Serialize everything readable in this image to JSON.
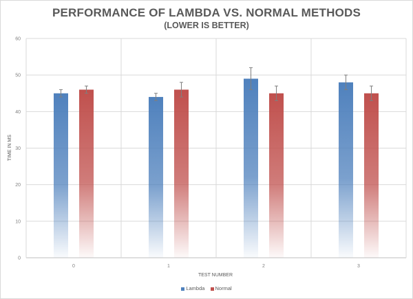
{
  "chart_data": {
    "type": "bar",
    "title": "PERFORMANCE OF LAMBDA VS. NORMAL METHODS",
    "subtitle": "(LOWER IS BETTER)",
    "xlabel": "TEST NUMBER",
    "ylabel": "TIME IN MS",
    "categories": [
      "0",
      "1",
      "2",
      "3"
    ],
    "ylim": [
      0,
      60
    ],
    "yticks": [
      0,
      10,
      20,
      30,
      40,
      50,
      60
    ],
    "grid": true,
    "legend": "bottom",
    "series": [
      {
        "name": "Lambda",
        "color": "#4f81bd",
        "values": [
          45,
          44,
          49,
          48
        ],
        "errors": [
          1,
          1,
          3,
          2
        ]
      },
      {
        "name": "Normal",
        "color": "#c0504d",
        "values": [
          46,
          46,
          45,
          45
        ],
        "errors": [
          1,
          2,
          2,
          2
        ]
      }
    ]
  }
}
